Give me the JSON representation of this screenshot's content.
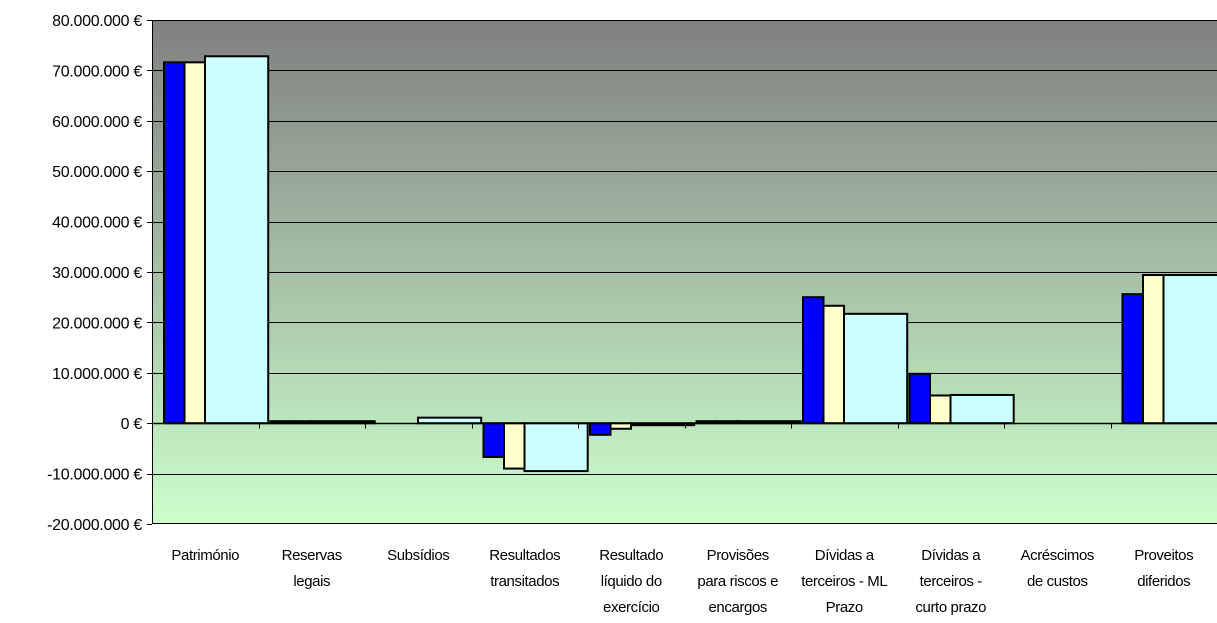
{
  "chart_data": {
    "type": "bar",
    "categories": [
      "Património",
      "Reservas legais",
      "Subsídios",
      "Resultados transitados",
      "Resultado líquido do exercício",
      "Provisões para riscos e encargos",
      "Dívidas a terceiros - ML Prazo",
      "Dívidas a terceiros - curto prazo",
      "Acréscimos de custos",
      "Proveitos diferidos"
    ],
    "category_lines": [
      [
        "Património"
      ],
      [
        "Reservas",
        "legais"
      ],
      [
        "Subsídios"
      ],
      [
        "Resultados",
        "transitados"
      ],
      [
        "Resultado",
        "líquido do",
        "exercício"
      ],
      [
        "Provisões",
        "para riscos e",
        "encargos"
      ],
      [
        "Dívidas a",
        "terceiros - ML",
        "Prazo"
      ],
      [
        "Dívidas a",
        "terceiros -",
        "curto prazo"
      ],
      [
        "Acréscimos",
        "de custos"
      ],
      [
        "Proveitos",
        "diferidos"
      ]
    ],
    "series": [
      {
        "values": [
          71600000,
          400000,
          0,
          -6700000,
          -2300000,
          400000,
          25000000,
          9800000,
          0,
          25600000
        ],
        "color": "#0000ff"
      },
      {
        "values": [
          71600000,
          400000,
          0,
          -9000000,
          -1100000,
          400000,
          23300000,
          5500000,
          0,
          29400000
        ],
        "color": "#ffffcc"
      },
      {
        "values": [
          72800000,
          400000,
          1100000,
          -9500000,
          -100000,
          400000,
          21700000,
          5600000,
          0,
          29400000
        ],
        "color": "#ccffff"
      }
    ],
    "ylim": [
      -20000000,
      80000000
    ],
    "y_ticks": [
      80000000,
      70000000,
      60000000,
      50000000,
      40000000,
      30000000,
      20000000,
      10000000,
      0,
      -10000000,
      -20000000
    ],
    "y_tick_labels": [
      "80.000.000 €",
      "70.000.000 €",
      "60.000.000 €",
      "50.000.000 €",
      "40.000.000 €",
      "30.000.000 €",
      "20.000.000 €",
      "10.000.000 €",
      "0 €",
      "-10.000.000 €",
      "-20.000.000 €"
    ],
    "grid": true,
    "legend": "none",
    "background_gradient": [
      "#808080",
      "#ccffcc"
    ]
  }
}
